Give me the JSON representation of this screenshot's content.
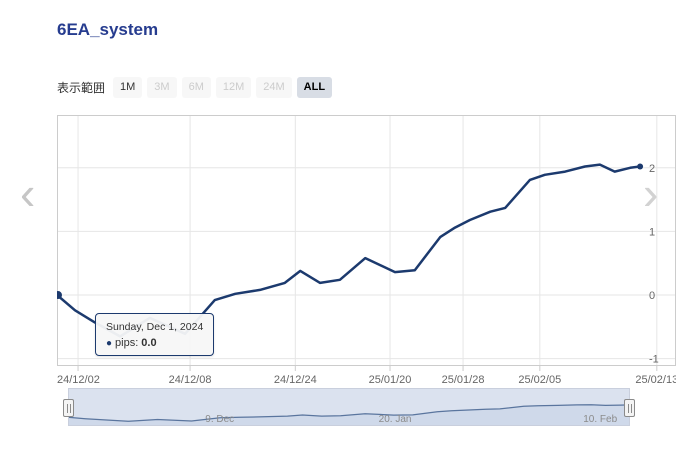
{
  "page": {
    "title": "6EA_system"
  },
  "colors": {
    "title": "#263c8f",
    "series": "#1c3a6e",
    "grid": "#e6e6e6",
    "axis_border": "#cccccc",
    "axis_label": "#666666",
    "nav_mask": "#8fa6cc",
    "nav_line": "#5a759e",
    "nav_area": "#eef2f8",
    "nav_border": "#c9cfdd",
    "nav_label": "#8b8b8b",
    "button_bg": "#f7f7f7",
    "button_selected_bg": "#d8dde5",
    "disabled_text": "#cccccc",
    "chevron": "#c6c6c6"
  },
  "range_selector": {
    "label": "表示範囲",
    "buttons": [
      {
        "label": "1M",
        "state": "normal"
      },
      {
        "label": "3M",
        "state": "disabled"
      },
      {
        "label": "6M",
        "state": "disabled"
      },
      {
        "label": "12M",
        "state": "disabled"
      },
      {
        "label": "24M",
        "state": "disabled"
      },
      {
        "label": "ALL",
        "state": "selected"
      }
    ]
  },
  "carousel": {
    "prev": "‹",
    "next": "›"
  },
  "tooltip": {
    "date": "Sunday, Dec 1, 2024",
    "dot": "●",
    "series_label": "pips:",
    "value": "0.0"
  },
  "chart_data": {
    "type": "line",
    "title": "",
    "xlabel": "",
    "ylabel": "pips",
    "yaxis_side": "right",
    "grid": true,
    "ylim": [
      -110,
      283
    ],
    "series": [
      {
        "name": "pips",
        "points": [
          [
            0.0,
            0
          ],
          [
            0.029,
            -24
          ],
          [
            0.061,
            -43
          ],
          [
            0.102,
            -65
          ],
          [
            0.15,
            -36
          ],
          [
            0.207,
            -61
          ],
          [
            0.255,
            -8
          ],
          [
            0.288,
            2
          ],
          [
            0.328,
            8
          ],
          [
            0.368,
            19
          ],
          [
            0.393,
            38
          ],
          [
            0.425,
            19
          ],
          [
            0.457,
            24
          ],
          [
            0.498,
            58
          ],
          [
            0.546,
            36
          ],
          [
            0.578,
            39
          ],
          [
            0.619,
            91
          ],
          [
            0.643,
            106
          ],
          [
            0.667,
            118
          ],
          [
            0.7,
            131
          ],
          [
            0.724,
            137
          ],
          [
            0.764,
            181
          ],
          [
            0.788,
            189
          ],
          [
            0.821,
            194
          ],
          [
            0.853,
            202
          ],
          [
            0.877,
            205
          ],
          [
            0.901,
            194
          ],
          [
            0.926,
            200
          ],
          [
            0.942,
            202
          ]
        ]
      }
    ],
    "xticks": [
      {
        "f": 0.034,
        "label": "24/12/02"
      },
      {
        "f": 0.215,
        "label": "24/12/08"
      },
      {
        "f": 0.385,
        "label": "24/12/24"
      },
      {
        "f": 0.538,
        "label": "25/01/20"
      },
      {
        "f": 0.656,
        "label": "25/01/28"
      },
      {
        "f": 0.78,
        "label": "25/02/05"
      },
      {
        "f": 0.969,
        "label": "25/02/13"
      }
    ],
    "yticks": [
      {
        "v": 200,
        "label": "2"
      },
      {
        "v": 100,
        "label": "1"
      },
      {
        "v": 0,
        "label": "0"
      },
      {
        "v": -100,
        "label": "-1"
      }
    ],
    "navigator_labels": [
      {
        "f": 0.27,
        "label": "9. Dec"
      },
      {
        "f": 0.582,
        "label": "20. Jan"
      },
      {
        "f": 0.947,
        "label": "10. Feb"
      }
    ]
  }
}
